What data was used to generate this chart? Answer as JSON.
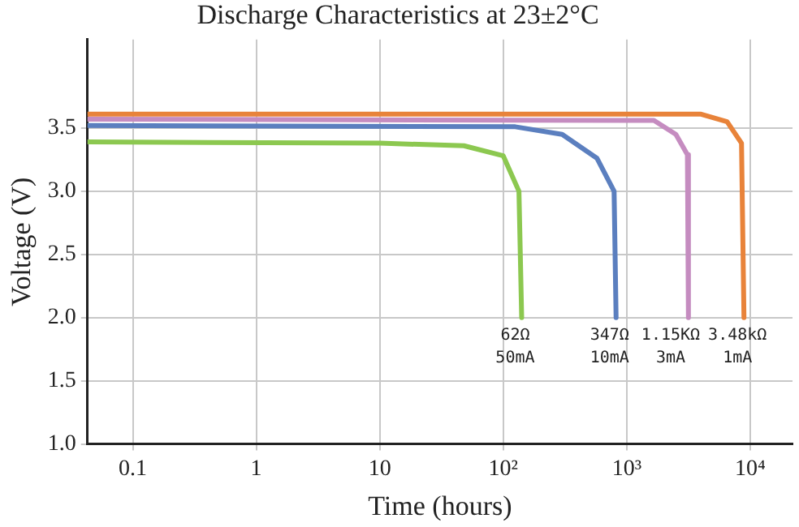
{
  "chart_data": {
    "type": "line",
    "title": "Discharge Characteristics at 23±2°C",
    "xlabel": "Time (hours)",
    "ylabel": "Voltage (V)",
    "log": "x",
    "grid": true,
    "marker": "none",
    "line_style": "solid",
    "xlim": [
      0.043,
      22000
    ],
    "xticks": [
      0.1,
      1,
      10,
      {
        "value": 100,
        "label": "10²"
      },
      {
        "value": 1000,
        "label": "10³"
      },
      {
        "value": 10000,
        "label": "10⁴"
      }
    ],
    "ylim": [
      1,
      4.2
    ],
    "yticks": [
      {
        "value": 1,
        "label": "1.0"
      },
      {
        "value": 1.5,
        "label": "1.5"
      },
      {
        "value": 2,
        "label": "2.0"
      },
      {
        "value": 2.5,
        "label": "2.5"
      },
      {
        "value": 3,
        "label": "3.0"
      },
      {
        "value": 3.5,
        "label": "3.5"
      }
    ],
    "series": [
      {
        "color": "#8cc850",
        "x": [
          0.043,
          10,
          48,
          100,
          134,
          141
        ],
        "values": [
          3.39,
          3.38,
          3.36,
          3.28,
          3.0,
          2.0
        ]
      },
      {
        "color": "#5b7fbf",
        "x": [
          0.043,
          125,
          300,
          575,
          790,
          820
        ],
        "values": [
          3.52,
          3.51,
          3.45,
          3.26,
          3.0,
          2.0
        ]
      },
      {
        "color": "#c58cc0",
        "x": [
          0.043,
          1660,
          2500,
          3100,
          3160
        ],
        "values": [
          3.57,
          3.56,
          3.45,
          3.29,
          2.0
        ]
      },
      {
        "color": "#e8833a",
        "x": [
          0.043,
          4000,
          6500,
          8500,
          8900
        ],
        "values": [
          3.61,
          3.61,
          3.55,
          3.38,
          2.0
        ]
      }
    ],
    "annotations": [
      "62Ω",
      "50mA",
      "347Ω",
      "10mA",
      "1.15KΩ",
      "3mA",
      "3.48kΩ",
      "1mA"
    ]
  }
}
